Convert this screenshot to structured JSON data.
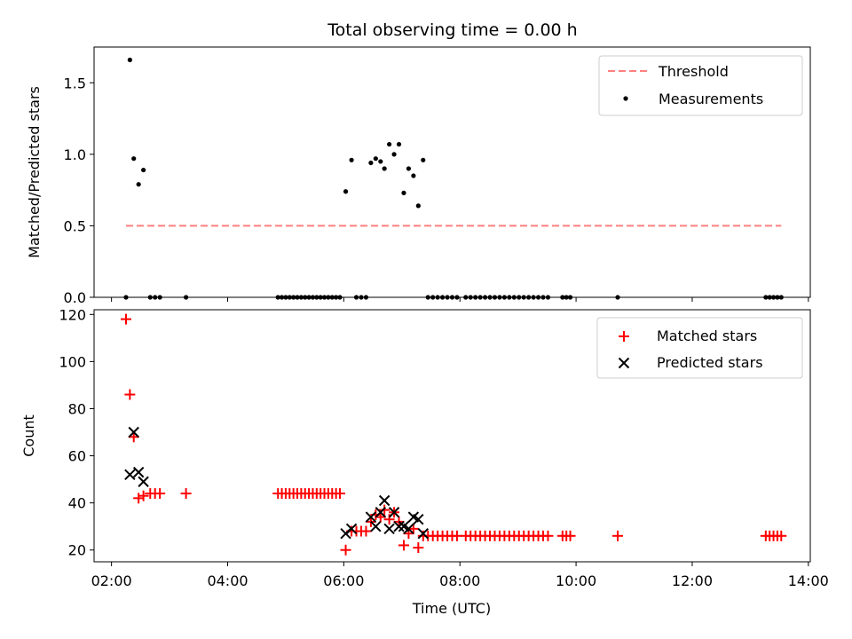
{
  "chart_data": [
    {
      "type": "scatter",
      "title": "Total observing time = 0.00 h",
      "xlabel": "",
      "ylabel": "Matched/Predicted stars",
      "ylim": [
        0,
        1.75
      ],
      "xlim": [
        "01:42",
        "14:02"
      ],
      "yticks": [
        "0.0",
        "0.5",
        "1.0",
        "1.5"
      ],
      "ytick_values": [
        0,
        0.5,
        1.0,
        1.5
      ],
      "legend_position": "upper-right",
      "threshold": {
        "name": "Threshold",
        "value": 0.5,
        "x_start": "02:15",
        "x_end": "13:32",
        "color": "#ff7f7f",
        "style": "dashed"
      },
      "series": [
        {
          "name": "Measurements",
          "color": "#000000",
          "points": [
            [
              "02:15",
              0
            ],
            [
              "02:19",
              1.66
            ],
            [
              "02:23",
              0.97
            ],
            [
              "02:28",
              0.79
            ],
            [
              "02:33",
              0.89
            ],
            [
              "02:40",
              0
            ],
            [
              "02:45",
              0
            ],
            [
              "02:50",
              0
            ],
            [
              "03:17",
              0
            ],
            [
              "04:52",
              0
            ],
            [
              "04:56",
              0
            ],
            [
              "05:00",
              0
            ],
            [
              "05:04",
              0
            ],
            [
              "05:08",
              0
            ],
            [
              "05:12",
              0
            ],
            [
              "05:16",
              0
            ],
            [
              "05:20",
              0
            ],
            [
              "05:24",
              0
            ],
            [
              "05:28",
              0
            ],
            [
              "05:32",
              0
            ],
            [
              "05:36",
              0
            ],
            [
              "05:40",
              0
            ],
            [
              "05:44",
              0
            ],
            [
              "05:48",
              0
            ],
            [
              "05:52",
              0
            ],
            [
              "05:56",
              0
            ],
            [
              "06:02",
              0.74
            ],
            [
              "06:08",
              0.96
            ],
            [
              "06:13",
              0
            ],
            [
              "06:18",
              0
            ],
            [
              "06:23",
              0
            ],
            [
              "06:28",
              0.94
            ],
            [
              "06:33",
              0.97
            ],
            [
              "06:38",
              0.95
            ],
            [
              "06:42",
              0.9
            ],
            [
              "06:47",
              1.07
            ],
            [
              "06:52",
              1.0
            ],
            [
              "06:57",
              1.07
            ],
            [
              "07:02",
              0.73
            ],
            [
              "07:07",
              0.9
            ],
            [
              "07:12",
              0.85
            ],
            [
              "07:17",
              0.64
            ],
            [
              "07:22",
              0.96
            ],
            [
              "07:27",
              0
            ],
            [
              "07:32",
              0
            ],
            [
              "07:37",
              0
            ],
            [
              "07:42",
              0
            ],
            [
              "07:47",
              0
            ],
            [
              "07:52",
              0
            ],
            [
              "07:57",
              0
            ],
            [
              "08:06",
              0
            ],
            [
              "08:11",
              0
            ],
            [
              "08:16",
              0
            ],
            [
              "08:21",
              0
            ],
            [
              "08:26",
              0
            ],
            [
              "08:31",
              0
            ],
            [
              "08:36",
              0
            ],
            [
              "08:41",
              0
            ],
            [
              "08:46",
              0
            ],
            [
              "08:51",
              0
            ],
            [
              "08:56",
              0
            ],
            [
              "09:01",
              0
            ],
            [
              "09:06",
              0
            ],
            [
              "09:11",
              0
            ],
            [
              "09:16",
              0
            ],
            [
              "09:21",
              0
            ],
            [
              "09:26",
              0
            ],
            [
              "09:31",
              0
            ],
            [
              "09:46",
              0
            ],
            [
              "09:50",
              0
            ],
            [
              "09:54",
              0
            ],
            [
              "10:43",
              0
            ],
            [
              "13:16",
              0
            ],
            [
              "13:20",
              0
            ],
            [
              "13:24",
              0
            ],
            [
              "13:28",
              0
            ],
            [
              "13:32",
              0
            ]
          ]
        }
      ]
    },
    {
      "type": "scatter",
      "title": "",
      "xlabel": "Time (UTC)",
      "ylabel": "Count",
      "ylim": [
        15,
        122
      ],
      "xlim": [
        "01:42",
        "14:02"
      ],
      "yticks": [
        "20",
        "40",
        "60",
        "80",
        "100",
        "120"
      ],
      "ytick_values": [
        20,
        40,
        60,
        80,
        100,
        120
      ],
      "xticks": [
        "02:00",
        "04:00",
        "06:00",
        "08:00",
        "10:00",
        "12:00",
        "14:00"
      ],
      "legend_position": "upper-right",
      "series": [
        {
          "name": "Matched stars",
          "color": "#ff0000",
          "marker": "plus",
          "points": [
            [
              "02:15",
              118
            ],
            [
              "02:19",
              86
            ],
            [
              "02:23",
              68
            ],
            [
              "02:28",
              42
            ],
            [
              "02:33",
              43
            ],
            [
              "02:40",
              44
            ],
            [
              "02:45",
              44
            ],
            [
              "02:50",
              44
            ],
            [
              "03:17",
              44
            ],
            [
              "04:52",
              44
            ],
            [
              "04:56",
              44
            ],
            [
              "05:00",
              44
            ],
            [
              "05:04",
              44
            ],
            [
              "05:08",
              44
            ],
            [
              "05:12",
              44
            ],
            [
              "05:16",
              44
            ],
            [
              "05:20",
              44
            ],
            [
              "05:24",
              44
            ],
            [
              "05:28",
              44
            ],
            [
              "05:32",
              44
            ],
            [
              "05:36",
              44
            ],
            [
              "05:40",
              44
            ],
            [
              "05:44",
              44
            ],
            [
              "05:48",
              44
            ],
            [
              "05:52",
              44
            ],
            [
              "05:56",
              44
            ],
            [
              "06:02",
              20
            ],
            [
              "06:08",
              28
            ],
            [
              "06:13",
              28
            ],
            [
              "06:18",
              28
            ],
            [
              "06:23",
              28
            ],
            [
              "06:28",
              32
            ],
            [
              "06:33",
              35
            ],
            [
              "06:38",
              34
            ],
            [
              "06:42",
              37
            ],
            [
              "06:47",
              33
            ],
            [
              "06:52",
              36
            ],
            [
              "06:57",
              32
            ],
            [
              "07:02",
              22
            ],
            [
              "07:07",
              27
            ],
            [
              "07:12",
              29
            ],
            [
              "07:17",
              21
            ],
            [
              "07:22",
              26
            ],
            [
              "07:27",
              26
            ],
            [
              "07:32",
              26
            ],
            [
              "07:37",
              26
            ],
            [
              "07:42",
              26
            ],
            [
              "07:47",
              26
            ],
            [
              "07:52",
              26
            ],
            [
              "07:57",
              26
            ],
            [
              "08:06",
              26
            ],
            [
              "08:11",
              26
            ],
            [
              "08:16",
              26
            ],
            [
              "08:21",
              26
            ],
            [
              "08:26",
              26
            ],
            [
              "08:31",
              26
            ],
            [
              "08:36",
              26
            ],
            [
              "08:41",
              26
            ],
            [
              "08:46",
              26
            ],
            [
              "08:51",
              26
            ],
            [
              "08:56",
              26
            ],
            [
              "09:01",
              26
            ],
            [
              "09:06",
              26
            ],
            [
              "09:11",
              26
            ],
            [
              "09:16",
              26
            ],
            [
              "09:21",
              26
            ],
            [
              "09:26",
              26
            ],
            [
              "09:31",
              26
            ],
            [
              "09:46",
              26
            ],
            [
              "09:50",
              26
            ],
            [
              "09:54",
              26
            ],
            [
              "10:43",
              26
            ],
            [
              "13:16",
              26
            ],
            [
              "13:20",
              26
            ],
            [
              "13:24",
              26
            ],
            [
              "13:28",
              26
            ],
            [
              "13:32",
              26
            ]
          ]
        },
        {
          "name": "Predicted stars",
          "color": "#000000",
          "marker": "x",
          "points": [
            [
              "02:19",
              52
            ],
            [
              "02:23",
              70
            ],
            [
              "02:28",
              53
            ],
            [
              "02:33",
              49
            ],
            [
              "06:02",
              27
            ],
            [
              "06:08",
              29
            ],
            [
              "06:28",
              34
            ],
            [
              "06:33",
              30
            ],
            [
              "06:38",
              36
            ],
            [
              "06:42",
              41
            ],
            [
              "06:47",
              29
            ],
            [
              "06:52",
              36
            ],
            [
              "06:57",
              30
            ],
            [
              "07:02",
              30
            ],
            [
              "07:07",
              29
            ],
            [
              "07:12",
              34
            ],
            [
              "07:17",
              33
            ],
            [
              "07:22",
              27
            ]
          ]
        }
      ]
    }
  ]
}
